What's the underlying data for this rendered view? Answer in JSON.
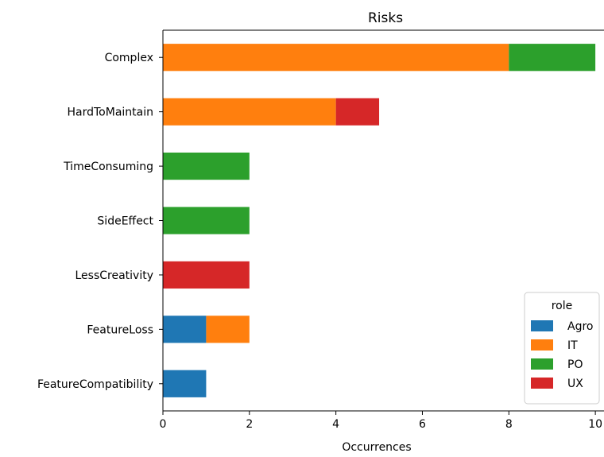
{
  "chart_data": {
    "type": "bar",
    "orientation": "horizontal",
    "stacked": true,
    "title": "Risks",
    "xlabel": "Occurrences",
    "ylabel": "",
    "xlim": [
      0,
      10.2
    ],
    "xticks": [
      0,
      2,
      4,
      6,
      8,
      10
    ],
    "grid": false,
    "categories": [
      "Complex",
      "HardToMaintain",
      "TimeConsuming",
      "SideEffect",
      "LessCreativity",
      "FeatureLoss",
      "FeatureCompatibility"
    ],
    "series": [
      {
        "name": "Agro",
        "color": "#1f77b4",
        "values": [
          0,
          0,
          0,
          0,
          0,
          1,
          1
        ]
      },
      {
        "name": "IT",
        "color": "#ff7f0e",
        "values": [
          8,
          4,
          0,
          0,
          0,
          1,
          0
        ]
      },
      {
        "name": "PO",
        "color": "#2ca02c",
        "values": [
          2,
          0,
          2,
          2,
          0,
          0,
          0
        ]
      },
      {
        "name": "UX",
        "color": "#d62728",
        "values": [
          0,
          1,
          0,
          0,
          2,
          0,
          0
        ]
      }
    ],
    "legend": {
      "title": "role",
      "placement": "lower-right"
    }
  }
}
